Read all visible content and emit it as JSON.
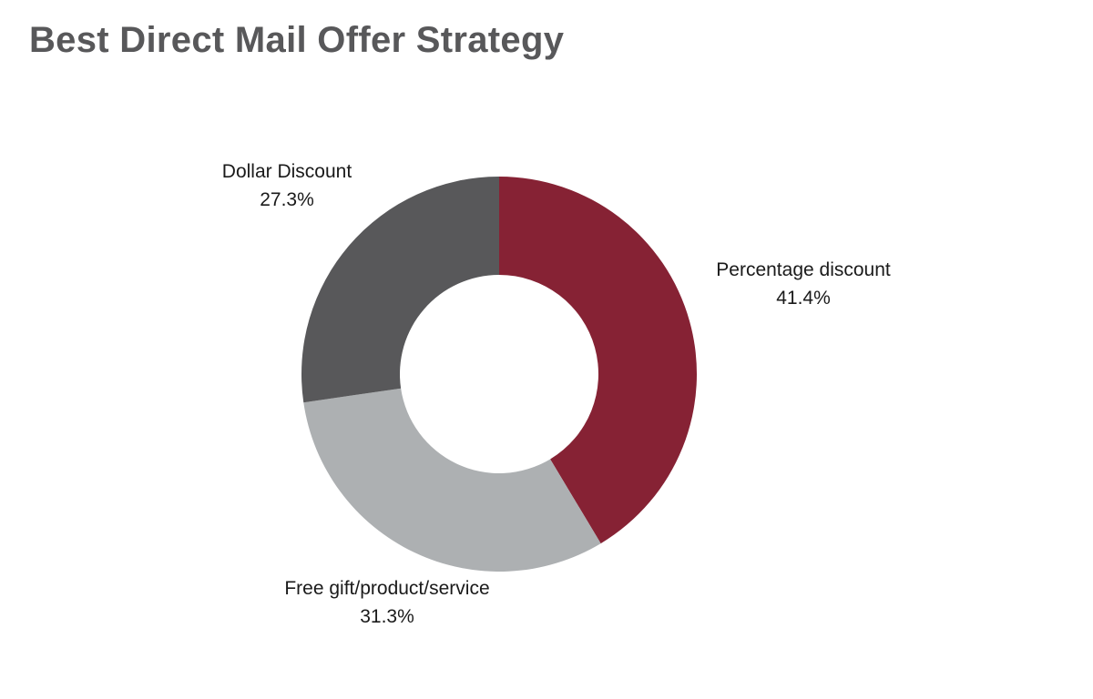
{
  "chart_data": {
    "type": "pie",
    "variant": "donut",
    "title": "Best Direct Mail Offer Strategy",
    "legend": "none",
    "slices": [
      {
        "label": "Percentage discount",
        "value": 41.4,
        "value_label": "41.4%",
        "color": "#862234"
      },
      {
        "label": "Free gift/product/service",
        "value": 31.3,
        "value_label": "31.3%",
        "color": "#adb0b2"
      },
      {
        "label": "Dollar Discount",
        "value": 27.3,
        "value_label": "27.3%",
        "color": "#58585a"
      }
    ]
  },
  "colors": {
    "title": "#58585a",
    "background": "#ffffff",
    "label_text": "#1a1a1a"
  }
}
